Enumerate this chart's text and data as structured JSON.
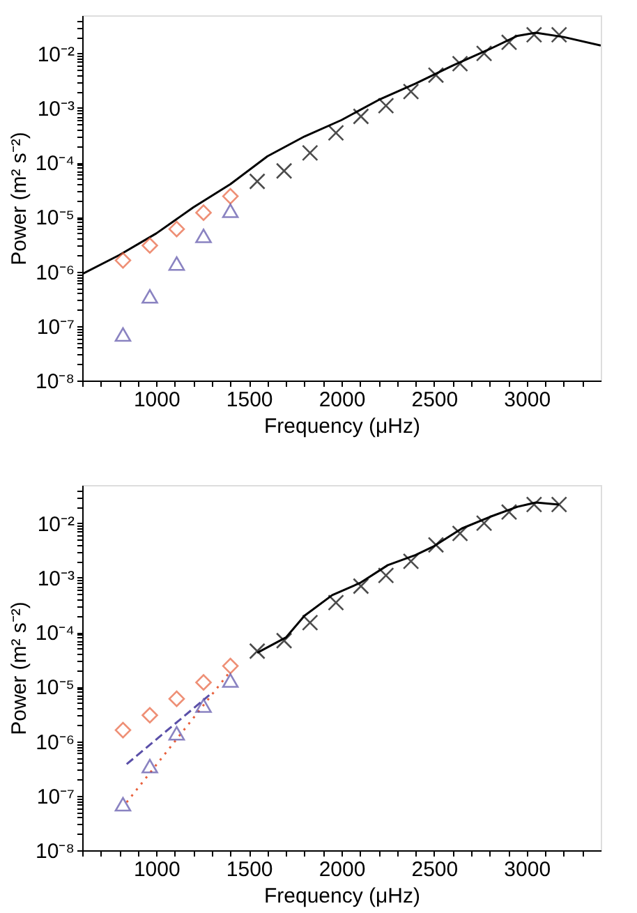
{
  "chart_data": [
    {
      "type": "scatter",
      "xlabel": "Frequency (μHz)",
      "ylabel": "Power (m² s⁻²)",
      "log": "y",
      "grid": false,
      "legend": false,
      "xlim": [
        600,
        3400
      ],
      "ylim": [
        1e-08,
        0.05
      ],
      "xticks": [
        {
          "value": 600,
          "label": null
        },
        {
          "value": 700,
          "label": null
        },
        {
          "value": 800,
          "label": null
        },
        {
          "value": 900,
          "label": null
        },
        1000,
        {
          "value": 1100,
          "label": null
        },
        {
          "value": 1200,
          "label": null
        },
        {
          "value": 1300,
          "label": null
        },
        {
          "value": 1400,
          "label": null
        },
        1500,
        {
          "value": 1600,
          "label": null
        },
        {
          "value": 1700,
          "label": null
        },
        {
          "value": 1800,
          "label": null
        },
        {
          "value": 1900,
          "label": null
        },
        2000,
        {
          "value": 2100,
          "label": null
        },
        {
          "value": 2200,
          "label": null
        },
        {
          "value": 2300,
          "label": null
        },
        {
          "value": 2400,
          "label": null
        },
        2500,
        {
          "value": 2600,
          "label": null
        },
        {
          "value": 2700,
          "label": null
        },
        {
          "value": 2800,
          "label": null
        },
        {
          "value": 2900,
          "label": null
        },
        3000,
        {
          "value": 3100,
          "label": null
        },
        {
          "value": 3200,
          "label": null
        },
        {
          "value": 3300,
          "label": null
        }
      ],
      "yticks": [
        {
          "value": 1e-08,
          "label": "10⁻⁸"
        },
        {
          "value": 2e-08,
          "label": null
        },
        {
          "value": 3e-08,
          "label": null
        },
        {
          "value": 4e-08,
          "label": null
        },
        {
          "value": 5e-08,
          "label": null
        },
        {
          "value": 6e-08,
          "label": null
        },
        {
          "value": 7e-08,
          "label": null
        },
        {
          "value": 8e-08,
          "label": null
        },
        {
          "value": 9e-08,
          "label": null
        },
        {
          "value": 1e-07,
          "label": "10⁻⁷"
        },
        {
          "value": 2e-07,
          "label": null
        },
        {
          "value": 3e-07,
          "label": null
        },
        {
          "value": 4e-07,
          "label": null
        },
        {
          "value": 5e-07,
          "label": null
        },
        {
          "value": 6e-07,
          "label": null
        },
        {
          "value": 7e-07,
          "label": null
        },
        {
          "value": 8e-07,
          "label": null
        },
        {
          "value": 9e-07,
          "label": null
        },
        {
          "value": 1e-06,
          "label": "10⁻⁶"
        },
        {
          "value": 2e-06,
          "label": null
        },
        {
          "value": 3e-06,
          "label": null
        },
        {
          "value": 4e-06,
          "label": null
        },
        {
          "value": 5e-06,
          "label": null
        },
        {
          "value": 6e-06,
          "label": null
        },
        {
          "value": 7e-06,
          "label": null
        },
        {
          "value": 8e-06,
          "label": null
        },
        {
          "value": 9e-06,
          "label": null
        },
        {
          "value": 1e-05,
          "label": "10⁻⁵"
        },
        {
          "value": 2e-05,
          "label": null
        },
        {
          "value": 3e-05,
          "label": null
        },
        {
          "value": 4e-05,
          "label": null
        },
        {
          "value": 5e-05,
          "label": null
        },
        {
          "value": 6e-05,
          "label": null
        },
        {
          "value": 7e-05,
          "label": null
        },
        {
          "value": 8e-05,
          "label": null
        },
        {
          "value": 9e-05,
          "label": null
        },
        {
          "value": 0.0001,
          "label": "10⁻⁴"
        },
        {
          "value": 0.0002,
          "label": null
        },
        {
          "value": 0.0003,
          "label": null
        },
        {
          "value": 0.0004,
          "label": null
        },
        {
          "value": 0.0005,
          "label": null
        },
        {
          "value": 0.0006,
          "label": null
        },
        {
          "value": 0.0007,
          "label": null
        },
        {
          "value": 0.0008,
          "label": null
        },
        {
          "value": 0.0009,
          "label": null
        },
        {
          "value": 0.001,
          "label": "10⁻³"
        },
        {
          "value": 0.002,
          "label": null
        },
        {
          "value": 0.003,
          "label": null
        },
        {
          "value": 0.004,
          "label": null
        },
        {
          "value": 0.005,
          "label": null
        },
        {
          "value": 0.006,
          "label": null
        },
        {
          "value": 0.007,
          "label": null
        },
        {
          "value": 0.008,
          "label": null
        },
        {
          "value": 0.009,
          "label": null
        },
        {
          "value": 0.01,
          "label": "10⁻²"
        },
        {
          "value": 0.02,
          "label": null
        },
        {
          "value": 0.03,
          "label": null
        },
        {
          "value": 0.04,
          "label": null
        }
      ],
      "series": [
        {
          "type": "line",
          "color": "#000000",
          "marker": "none",
          "line_style": "solid",
          "x": [
            600,
            800,
            1000,
            1200,
            1400,
            1600,
            1800,
            2000,
            2200,
            2400,
            2600,
            2800,
            2950,
            3050,
            3200,
            3400
          ],
          "values": [
            9e-07,
            2e-06,
            5e-06,
            1.5e-05,
            4e-05,
            0.00013,
            0.0003,
            0.0006,
            0.0014,
            0.0028,
            0.006,
            0.012,
            0.021,
            0.024,
            0.02,
            0.014
          ]
        },
        {
          "type": "scatter",
          "color": "#e8603c",
          "marker": "diamond",
          "x": [
            820,
            965,
            1110,
            1255,
            1400
          ],
          "values": [
            1.6e-06,
            3e-06,
            6e-06,
            1.2e-05,
            2.4e-05
          ]
        },
        {
          "type": "scatter",
          "color": "#5a4fa8",
          "marker": "triangle",
          "x": [
            820,
            965,
            1110,
            1255,
            1400
          ],
          "values": [
            7e-08,
            3.5e-07,
            1.4e-06,
            4.5e-06,
            1.3e-05
          ]
        },
        {
          "type": "scatter",
          "color": "#000000",
          "marker": "cross",
          "x": [
            1545,
            1690,
            1830,
            1970,
            2105,
            2240,
            2375,
            2510,
            2640,
            2770,
            2905,
            3040,
            3175
          ],
          "values": [
            4.5e-05,
            7e-05,
            0.00015,
            0.00035,
            0.0007,
            0.0011,
            0.002,
            0.004,
            0.0065,
            0.01,
            0.016,
            0.022,
            0.022
          ]
        }
      ]
    },
    {
      "type": "scatter",
      "xlabel": "Frequency (μHz)",
      "ylabel": "Power (m² s⁻²)",
      "log": "y",
      "grid": false,
      "legend": false,
      "xlim": [
        600,
        3400
      ],
      "ylim": [
        1e-08,
        0.05
      ],
      "xticks": [
        {
          "value": 600,
          "label": null
        },
        {
          "value": 700,
          "label": null
        },
        {
          "value": 800,
          "label": null
        },
        {
          "value": 900,
          "label": null
        },
        1000,
        {
          "value": 1100,
          "label": null
        },
        {
          "value": 1200,
          "label": null
        },
        {
          "value": 1300,
          "label": null
        },
        {
          "value": 1400,
          "label": null
        },
        1500,
        {
          "value": 1600,
          "label": null
        },
        {
          "value": 1700,
          "label": null
        },
        {
          "value": 1800,
          "label": null
        },
        {
          "value": 1900,
          "label": null
        },
        2000,
        {
          "value": 2100,
          "label": null
        },
        {
          "value": 2200,
          "label": null
        },
        {
          "value": 2300,
          "label": null
        },
        {
          "value": 2400,
          "label": null
        },
        2500,
        {
          "value": 2600,
          "label": null
        },
        {
          "value": 2700,
          "label": null
        },
        {
          "value": 2800,
          "label": null
        },
        {
          "value": 2900,
          "label": null
        },
        3000,
        {
          "value": 3100,
          "label": null
        },
        {
          "value": 3200,
          "label": null
        },
        {
          "value": 3300,
          "label": null
        }
      ],
      "yticks": [
        {
          "value": 1e-08,
          "label": "10⁻⁸"
        },
        {
          "value": 2e-08,
          "label": null
        },
        {
          "value": 3e-08,
          "label": null
        },
        {
          "value": 4e-08,
          "label": null
        },
        {
          "value": 5e-08,
          "label": null
        },
        {
          "value": 6e-08,
          "label": null
        },
        {
          "value": 7e-08,
          "label": null
        },
        {
          "value": 8e-08,
          "label": null
        },
        {
          "value": 9e-08,
          "label": null
        },
        {
          "value": 1e-07,
          "label": "10⁻⁷"
        },
        {
          "value": 2e-07,
          "label": null
        },
        {
          "value": 3e-07,
          "label": null
        },
        {
          "value": 4e-07,
          "label": null
        },
        {
          "value": 5e-07,
          "label": null
        },
        {
          "value": 6e-07,
          "label": null
        },
        {
          "value": 7e-07,
          "label": null
        },
        {
          "value": 8e-07,
          "label": null
        },
        {
          "value": 9e-07,
          "label": null
        },
        {
          "value": 1e-06,
          "label": "10⁻⁶"
        },
        {
          "value": 2e-06,
          "label": null
        },
        {
          "value": 3e-06,
          "label": null
        },
        {
          "value": 4e-06,
          "label": null
        },
        {
          "value": 5e-06,
          "label": null
        },
        {
          "value": 6e-06,
          "label": null
        },
        {
          "value": 7e-06,
          "label": null
        },
        {
          "value": 8e-06,
          "label": null
        },
        {
          "value": 9e-06,
          "label": null
        },
        {
          "value": 1e-05,
          "label": "10⁻⁵"
        },
        {
          "value": 2e-05,
          "label": null
        },
        {
          "value": 3e-05,
          "label": null
        },
        {
          "value": 4e-05,
          "label": null
        },
        {
          "value": 5e-05,
          "label": null
        },
        {
          "value": 6e-05,
          "label": null
        },
        {
          "value": 7e-05,
          "label": null
        },
        {
          "value": 8e-05,
          "label": null
        },
        {
          "value": 9e-05,
          "label": null
        },
        {
          "value": 0.0001,
          "label": "10⁻⁴"
        },
        {
          "value": 0.0002,
          "label": null
        },
        {
          "value": 0.0003,
          "label": null
        },
        {
          "value": 0.0004,
          "label": null
        },
        {
          "value": 0.0005,
          "label": null
        },
        {
          "value": 0.0006,
          "label": null
        },
        {
          "value": 0.0007,
          "label": null
        },
        {
          "value": 0.0008,
          "label": null
        },
        {
          "value": 0.0009,
          "label": null
        },
        {
          "value": 0.001,
          "label": "10⁻³"
        },
        {
          "value": 0.002,
          "label": null
        },
        {
          "value": 0.003,
          "label": null
        },
        {
          "value": 0.004,
          "label": null
        },
        {
          "value": 0.005,
          "label": null
        },
        {
          "value": 0.006,
          "label": null
        },
        {
          "value": 0.007,
          "label": null
        },
        {
          "value": 0.008,
          "label": null
        },
        {
          "value": 0.009,
          "label": null
        },
        {
          "value": 0.01,
          "label": "10⁻²"
        },
        {
          "value": 0.02,
          "label": null
        },
        {
          "value": 0.03,
          "label": null
        },
        {
          "value": 0.04,
          "label": null
        }
      ],
      "series": [
        {
          "type": "line",
          "color": "#000000",
          "marker": "none",
          "line_style": "solid",
          "x": [
            1545,
            1700,
            1800,
            1950,
            2100,
            2250,
            2400,
            2500,
            2650,
            2800,
            2950,
            3050,
            3175
          ],
          "values": [
            4.2e-05,
            8e-05,
            0.0002,
            0.00048,
            0.0008,
            0.0017,
            0.0026,
            0.0038,
            0.008,
            0.013,
            0.02,
            0.024,
            0.022
          ]
        },
        {
          "type": "line",
          "color": "#5a4fa8",
          "marker": "none",
          "line_style": "dashed",
          "x": [
            840,
            1286
          ],
          "values": [
            3.8e-07,
            7e-06
          ]
        },
        {
          "type": "line",
          "color": "#e8603c",
          "marker": "none",
          "line_style": "dotted",
          "x": [
            840,
            1397
          ],
          "values": [
            7.6e-08,
            1.87e-05
          ]
        },
        {
          "type": "scatter",
          "color": "#e8603c",
          "marker": "diamond",
          "x": [
            820,
            965,
            1110,
            1255,
            1400
          ],
          "values": [
            1.6e-06,
            3e-06,
            6e-06,
            1.2e-05,
            2.4e-05
          ]
        },
        {
          "type": "scatter",
          "color": "#5a4fa8",
          "marker": "triangle",
          "x": [
            820,
            965,
            1110,
            1255,
            1400
          ],
          "values": [
            7e-08,
            3.5e-07,
            1.4e-06,
            4.5e-06,
            1.3e-05
          ]
        },
        {
          "type": "scatter",
          "color": "#000000",
          "marker": "cross",
          "x": [
            1545,
            1690,
            1830,
            1970,
            2105,
            2240,
            2375,
            2510,
            2640,
            2770,
            2905,
            3040,
            3175
          ],
          "values": [
            4.5e-05,
            7e-05,
            0.00015,
            0.00035,
            0.0007,
            0.0011,
            0.002,
            0.004,
            0.0065,
            0.01,
            0.016,
            0.022,
            0.022
          ]
        }
      ]
    }
  ]
}
